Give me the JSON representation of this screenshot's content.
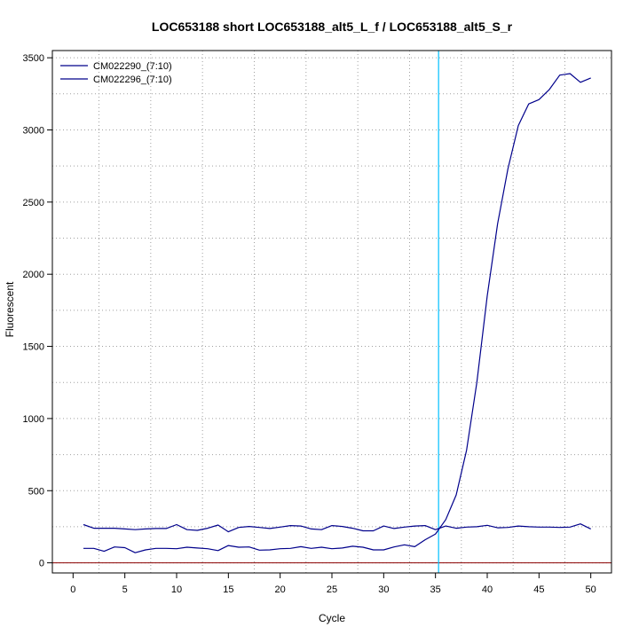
{
  "chart_data": {
    "type": "line",
    "title": "LOC653188 short LOC653188_alt5_L_f / LOC653188_alt5_S_r",
    "xlabel": "Cycle",
    "ylabel": "Fluorescent",
    "xlim": [
      -2,
      52
    ],
    "ylim": [
      -70,
      3550
    ],
    "x_ticks": [
      0,
      5,
      10,
      15,
      20,
      25,
      30,
      35,
      40,
      45,
      50
    ],
    "y_ticks": [
      0,
      500,
      1000,
      1500,
      2000,
      2500,
      3000,
      3500
    ],
    "grid": true,
    "grid_style": "dotted",
    "legend_position": "top-left",
    "threshold_cycle": 35.3,
    "threshold_color": "#00bfff",
    "baseline_y": 0,
    "baseline_color": "#8b0000",
    "series": [
      {
        "name": "CM022290_(7:10)",
        "color": "#00008b",
        "x": [
          1,
          2,
          3,
          4,
          5,
          6,
          7,
          8,
          9,
          10,
          11,
          12,
          13,
          14,
          15,
          16,
          17,
          18,
          19,
          20,
          21,
          22,
          23,
          24,
          25,
          26,
          27,
          28,
          29,
          30,
          31,
          32,
          33,
          34,
          35,
          36,
          37,
          38,
          39,
          40,
          41,
          42,
          43,
          44,
          45,
          46,
          47,
          48,
          49,
          50
        ],
        "values": [
          100,
          100,
          80,
          110,
          105,
          70,
          90,
          100,
          100,
          98,
          108,
          103,
          98,
          85,
          120,
          108,
          110,
          88,
          90,
          98,
          100,
          112,
          100,
          108,
          98,
          103,
          115,
          108,
          90,
          90,
          110,
          125,
          112,
          160,
          200,
          300,
          470,
          780,
          1250,
          1850,
          2350,
          2730,
          3030,
          3180,
          3210,
          3280,
          3380,
          3390,
          3330,
          3360
        ]
      },
      {
        "name": "CM022296_(7:10)",
        "color": "#00008b",
        "x": [
          1,
          2,
          3,
          4,
          5,
          6,
          7,
          8,
          9,
          10,
          11,
          12,
          13,
          14,
          15,
          16,
          17,
          18,
          19,
          20,
          21,
          22,
          23,
          24,
          25,
          26,
          27,
          28,
          29,
          30,
          31,
          32,
          33,
          34,
          35,
          36,
          37,
          38,
          39,
          40,
          41,
          42,
          43,
          44,
          45,
          46,
          47,
          48,
          49,
          50
        ],
        "values": [
          265,
          240,
          240,
          240,
          235,
          230,
          235,
          238,
          238,
          265,
          230,
          225,
          240,
          262,
          215,
          245,
          252,
          245,
          238,
          248,
          258,
          255,
          235,
          230,
          258,
          252,
          240,
          222,
          222,
          255,
          238,
          248,
          255,
          258,
          230,
          255,
          240,
          248,
          250,
          260,
          243,
          245,
          255,
          250,
          248,
          248,
          245,
          248,
          270,
          235
        ]
      }
    ]
  }
}
